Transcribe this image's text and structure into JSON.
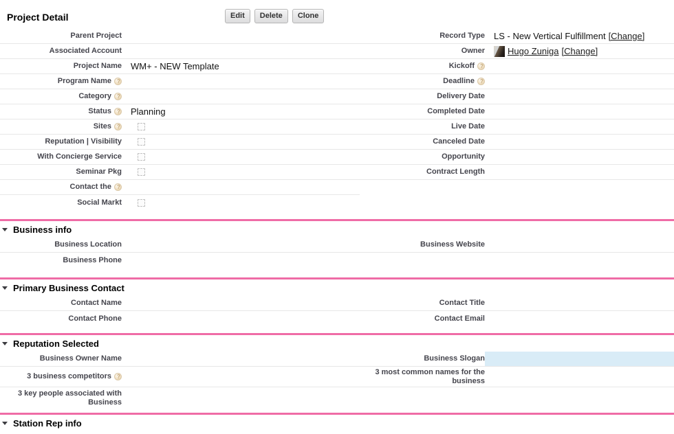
{
  "colors": {
    "section_border": "#ef6ca6",
    "row_border": "#e7e7e7",
    "highlight_cell": "#d9ecf7",
    "label_color": "#45454d",
    "link_color": "#1c1c1c"
  },
  "header": {
    "title": "Project Detail",
    "buttons": [
      "Edit",
      "Delete",
      "Clone"
    ]
  },
  "record": {
    "parent_project": {
      "label": "Parent Project",
      "value": ""
    },
    "record_type": {
      "label": "Record Type",
      "value": "LS - New Vertical Fulfillment",
      "change_label": "[Change]"
    },
    "associated_account": {
      "label": "Associated Account",
      "value": ""
    },
    "owner": {
      "label": "Owner",
      "value": "Hugo Zuniga",
      "change_label": "[Change]",
      "avatar": "owner-photo-thumbnail"
    },
    "project_name": {
      "label": "Project Name",
      "value": "WM+ - NEW Template"
    },
    "kickoff": {
      "label": "Kickoff",
      "value": "",
      "has_help": true
    },
    "program_name": {
      "label": "Program Name",
      "value": "",
      "has_help": true
    },
    "deadline": {
      "label": "Deadline",
      "value": "",
      "has_help": true
    },
    "category": {
      "label": "Category",
      "value": "",
      "has_help": true
    },
    "delivery_date": {
      "label": "Delivery Date",
      "value": ""
    },
    "status": {
      "label": "Status",
      "value": "Planning",
      "has_help": true
    },
    "completed_date": {
      "label": "Completed Date",
      "value": ""
    },
    "sites": {
      "label": "Sites",
      "checked": false,
      "has_help": true
    },
    "live_date": {
      "label": "Live Date",
      "value": ""
    },
    "reputation_visibility": {
      "label": "Reputation | Visibility",
      "checked": false
    },
    "canceled_date": {
      "label": "Canceled Date",
      "value": ""
    },
    "with_concierge": {
      "label": "With Concierge Service",
      "checked": false
    },
    "opportunity": {
      "label": "Opportunity",
      "value": ""
    },
    "seminar_pkg": {
      "label": "Seminar Pkg",
      "checked": false
    },
    "contract_length": {
      "label": "Contract Length",
      "value": ""
    },
    "contact_the": {
      "label": "Contact the",
      "has_help": true
    },
    "social_markt": {
      "label": "Social Markt",
      "checked": false
    }
  },
  "sections": {
    "business_info": {
      "title": "Business info",
      "business_location": {
        "label": "Business Location",
        "value": ""
      },
      "business_website": {
        "label": "Business Website",
        "value": ""
      },
      "business_phone": {
        "label": "Business Phone",
        "value": ""
      }
    },
    "primary_business_contact": {
      "title": "Primary Business Contact",
      "contact_name": {
        "label": "Contact Name",
        "value": ""
      },
      "contact_title": {
        "label": "Contact Title",
        "value": ""
      },
      "contact_phone": {
        "label": "Contact Phone",
        "value": ""
      },
      "contact_email": {
        "label": "Contact Email",
        "value": ""
      }
    },
    "reputation_selected": {
      "title": "Reputation Selected",
      "business_owner_name": {
        "label": "Business Owner Name",
        "value": ""
      },
      "business_slogan": {
        "label": "Business Slogan",
        "value": "",
        "highlighted": true
      },
      "business_competitors": {
        "label": "3 business competitors",
        "has_help": true,
        "value": ""
      },
      "common_names": {
        "label": "3 most common names for the business",
        "value": ""
      },
      "key_people": {
        "label": "3 key people associated with Business",
        "value": ""
      }
    },
    "station_rep_info": {
      "title": "Station Rep info"
    }
  }
}
